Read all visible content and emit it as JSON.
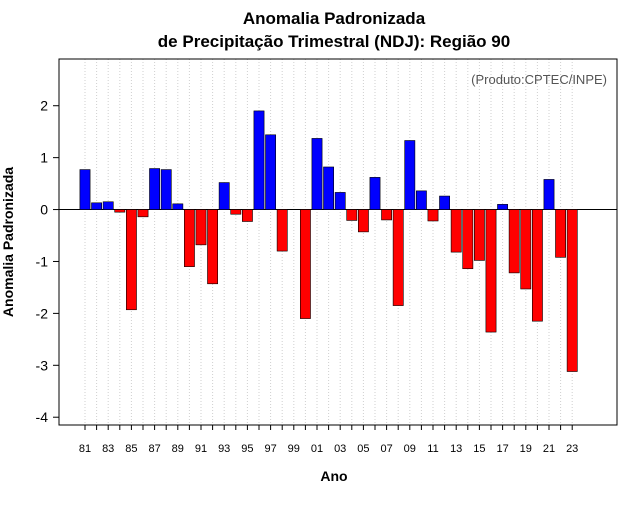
{
  "chart_data": {
    "type": "bar",
    "title": "Anomalia Padronizada",
    "subtitle": "de Precipitação Trimestral (NDJ): Região 90",
    "xlabel": "Ano",
    "ylabel": "Anomalia Padronizada",
    "annotation": "(Produto:CPTEC/INPE)",
    "ylim": [
      -4.15,
      2.9
    ],
    "yticks": [
      -4,
      -3,
      -2,
      -1,
      0,
      1,
      2
    ],
    "positive_color": "#0000ff",
    "negative_color": "#ff0000",
    "grid": true,
    "categories": [
      "81",
      "82",
      "83",
      "84",
      "85",
      "86",
      "87",
      "88",
      "89",
      "90",
      "91",
      "92",
      "93",
      "94",
      "95",
      "96",
      "97",
      "98",
      "99",
      "00",
      "01",
      "02",
      "03",
      "04",
      "05",
      "06",
      "07",
      "08",
      "09",
      "10",
      "11",
      "12",
      "13",
      "14",
      "15",
      "16",
      "17",
      "18",
      "19",
      "20",
      "21",
      "22",
      "23"
    ],
    "tick_labels": [
      "81",
      "83",
      "85",
      "87",
      "89",
      "91",
      "93",
      "95",
      "97",
      "99",
      "01",
      "03",
      "05",
      "07",
      "09",
      "11",
      "13",
      "15",
      "17",
      "19",
      "21",
      "23"
    ],
    "values": [
      0.77,
      0.13,
      0.15,
      -0.05,
      -1.93,
      -0.14,
      0.79,
      0.77,
      0.11,
      -1.1,
      -0.68,
      -1.43,
      0.52,
      -0.09,
      -0.23,
      1.9,
      1.44,
      -0.8,
      0.0,
      -2.1,
      1.37,
      0.82,
      0.33,
      -0.21,
      -0.43,
      0.62,
      -0.2,
      -1.85,
      1.33,
      0.36,
      -0.22,
      0.26,
      -0.82,
      -1.14,
      -0.98,
      -2.36,
      0.1,
      -1.22,
      -1.53,
      -2.15,
      0.58,
      -0.92,
      -3.12
    ]
  }
}
